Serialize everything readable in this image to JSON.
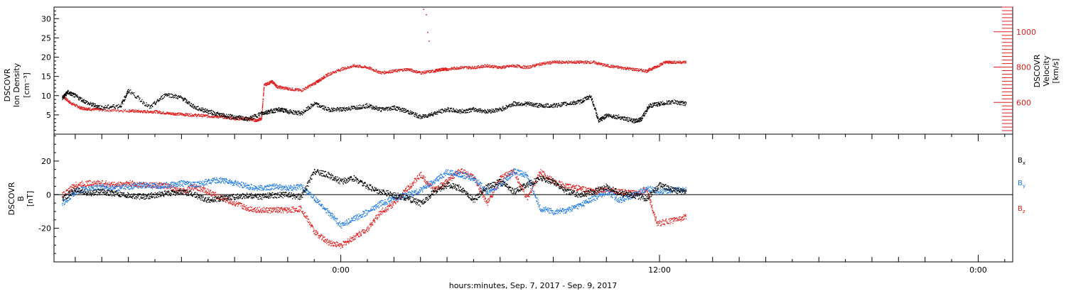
{
  "chart_data": [
    {
      "type": "scatter",
      "panel": "top",
      "ylabel_left": [
        "DSCOVR",
        "Ion Density",
        "[cm⁻³]"
      ],
      "ylabel_right": [
        "DSCOVR",
        "Velocity",
        "[km/s]"
      ],
      "y_left_ticks": [
        "5",
        "10",
        "15",
        "20",
        "25",
        "30"
      ],
      "y_left_lim": [
        0,
        33
      ],
      "y_right_ticks": [
        "600",
        "800",
        "1000"
      ],
      "y_right_lim": [
        420,
        1140
      ],
      "series": [
        {
          "axis": "left",
          "color": "#000000",
          "x": [
            -10.5,
            -10.3,
            -10.0,
            -9.5,
            -9.0,
            -8.3,
            -8.0,
            -7.2,
            -6.6,
            -6.0,
            -5.5,
            -5.0,
            -4.5,
            -4.0,
            -3.5,
            -3.0,
            -2.7,
            -2.3,
            -2.0,
            -1.5,
            -1.0,
            -0.5,
            0.0,
            0.5,
            1.0,
            1.5,
            2.0,
            2.5,
            3.0,
            3.5,
            4.0,
            4.5,
            5.0,
            5.5,
            6.0,
            6.5,
            7.0,
            7.5,
            8.0,
            8.5,
            9.0,
            9.4,
            9.7,
            10.0,
            10.5,
            11.0,
            11.3,
            11.6,
            12.0,
            12.5,
            13.0
          ],
          "y": [
            9.5,
            11.0,
            10.0,
            8.0,
            7.0,
            7.5,
            11.5,
            7.0,
            10.5,
            9.5,
            7.0,
            6.0,
            5.0,
            4.5,
            4.0,
            5.5,
            6.0,
            6.5,
            6.0,
            5.5,
            8.0,
            6.5,
            6.5,
            7.0,
            7.5,
            6.5,
            7.0,
            6.0,
            4.5,
            5.5,
            6.5,
            6.0,
            6.5,
            6.0,
            6.5,
            8.0,
            8.0,
            7.5,
            7.5,
            8.0,
            8.5,
            10.0,
            3.5,
            5.0,
            4.5,
            3.5,
            4.0,
            7.5,
            8.0,
            8.5,
            8.0
          ]
        },
        {
          "axis": "right",
          "color": "#e02020",
          "x": [
            -10.5,
            -10.2,
            -9.8,
            -9.5,
            -9.0,
            -8.0,
            -7.5,
            -7.0,
            -6.5,
            -6.0,
            -5.5,
            -5.0,
            -4.5,
            -4.0,
            -3.5,
            -3.2,
            -3.0,
            -2.9,
            -2.6,
            -2.4,
            -2.0,
            -1.5,
            -1.0,
            -0.8,
            -0.5,
            0.0,
            0.5,
            1.0,
            1.5,
            2.0,
            2.5,
            3.0,
            3.5,
            3.8,
            4.0,
            4.5,
            5.0,
            5.5,
            6.0,
            6.5,
            7.0,
            7.5,
            8.0,
            8.5,
            9.0,
            9.5,
            10.0,
            10.5,
            11.0,
            11.5,
            11.8,
            12.2,
            12.5,
            13.0
          ],
          "y": [
            640,
            600,
            570,
            565,
            560,
            555,
            550,
            550,
            540,
            535,
            530,
            525,
            520,
            510,
            510,
            500,
            510,
            700,
            720,
            690,
            680,
            670,
            710,
            730,
            760,
            790,
            810,
            800,
            770,
            780,
            790,
            770,
            780,
            790,
            790,
            800,
            800,
            810,
            800,
            810,
            800,
            820,
            830,
            830,
            830,
            830,
            810,
            800,
            790,
            780,
            800,
            830,
            830,
            830
          ]
        }
      ],
      "outliers_right": {
        "x": [
          3.1,
          3.2,
          3.25,
          3.3
        ],
        "y": [
          1130,
          1100,
          1000,
          950
        ]
      }
    },
    {
      "type": "scatter",
      "panel": "bottom",
      "ylabel_left": [
        "DSCOVR",
        "B",
        "[nT]"
      ],
      "y_ticks": [
        "20",
        "0",
        "-20"
      ],
      "ylim": [
        -40,
        36
      ],
      "xlabel": "hours:minutes, Sep.  7, 2017 - Sep.  9, 2017",
      "x_tick_labels": [
        "0:00",
        "12:00",
        "0:00"
      ],
      "xlim": [
        -10.8,
        25.3
      ],
      "legend": [
        {
          "label": "B",
          "sub": "x",
          "color": "#000000"
        },
        {
          "label": "B",
          "sub": "y",
          "color": "#1e7ae6"
        },
        {
          "label": "B",
          "sub": "z",
          "color": "#e02020"
        }
      ],
      "series": [
        {
          "name": "Bx",
          "color": "#000000",
          "x": [
            -10.5,
            -10.0,
            -9.5,
            -9.0,
            -8.5,
            -8.0,
            -7.5,
            -7.0,
            -6.5,
            -6.0,
            -5.5,
            -5.0,
            -4.5,
            -4.0,
            -3.5,
            -3.0,
            -2.5,
            -2.0,
            -1.5,
            -1.0,
            -0.5,
            0.0,
            0.5,
            1.0,
            1.5,
            2.0,
            2.5,
            3.0,
            3.5,
            4.0,
            4.5,
            5.0,
            5.5,
            6.0,
            6.5,
            7.0,
            7.5,
            8.0,
            8.5,
            9.0,
            9.5,
            10.0,
            10.5,
            11.0,
            11.5,
            12.0,
            12.5,
            13.0
          ],
          "y": [
            -2,
            3,
            1,
            2,
            1,
            0,
            -1,
            0,
            1,
            2,
            0,
            -3,
            -2,
            -1,
            0,
            -1,
            0,
            0,
            -1,
            14,
            12,
            8,
            10,
            5,
            2,
            0,
            -2,
            -5,
            2,
            6,
            4,
            -3,
            5,
            8,
            2,
            6,
            10,
            8,
            2,
            0,
            2,
            5,
            1,
            0,
            -2,
            6,
            3,
            2
          ]
        },
        {
          "name": "By",
          "color": "#1e7ae6",
          "x": [
            -10.5,
            -10.0,
            -9.5,
            -9.0,
            -8.5,
            -8.0,
            -7.5,
            -7.0,
            -6.5,
            -6.0,
            -5.5,
            -5.0,
            -4.5,
            -4.0,
            -3.5,
            -3.0,
            -2.5,
            -2.0,
            -1.5,
            -1.0,
            -0.5,
            0.0,
            0.5,
            1.0,
            1.5,
            2.0,
            2.5,
            3.0,
            3.5,
            4.0,
            4.5,
            5.0,
            5.5,
            6.0,
            6.5,
            7.0,
            7.5,
            8.0,
            8.5,
            9.0,
            9.5,
            10.0,
            10.5,
            11.0,
            11.5,
            12.0,
            12.5,
            13.0
          ],
          "y": [
            -5,
            2,
            4,
            5,
            4,
            5,
            6,
            5,
            6,
            7,
            6,
            8,
            9,
            7,
            5,
            4,
            5,
            4,
            5,
            -2,
            -10,
            -18,
            -14,
            -10,
            -5,
            -2,
            0,
            3,
            8,
            14,
            12,
            10,
            2,
            6,
            14,
            12,
            -8,
            -10,
            -9,
            -6,
            -2,
            2,
            -3,
            0,
            4,
            2,
            3,
            3
          ]
        },
        {
          "name": "Bz",
          "color": "#e02020",
          "x": [
            -10.5,
            -10.0,
            -9.5,
            -9.0,
            -8.5,
            -8.0,
            -7.5,
            -7.0,
            -6.5,
            -6.0,
            -5.5,
            -5.0,
            -4.5,
            -4.0,
            -3.5,
            -3.0,
            -2.5,
            -2.0,
            -1.5,
            -1.0,
            -0.5,
            0.0,
            0.5,
            1.0,
            1.5,
            2.0,
            2.5,
            3.0,
            3.5,
            4.0,
            4.5,
            5.0,
            5.5,
            6.0,
            6.5,
            7.0,
            7.5,
            8.0,
            8.5,
            9.0,
            9.5,
            10.0,
            10.5,
            11.0,
            11.5,
            11.9,
            12.5,
            13.0
          ],
          "y": [
            0,
            6,
            7,
            7,
            6,
            7,
            6,
            6,
            5,
            2,
            5,
            2,
            -2,
            -5,
            -8,
            -9,
            -9,
            -9,
            -8,
            -22,
            -28,
            -30,
            -25,
            -20,
            -10,
            -5,
            4,
            12,
            3,
            8,
            15,
            10,
            -5,
            10,
            14,
            -2,
            14,
            8,
            5,
            4,
            2,
            3,
            2,
            1,
            3,
            -17,
            -15,
            -13
          ]
        }
      ]
    }
  ]
}
